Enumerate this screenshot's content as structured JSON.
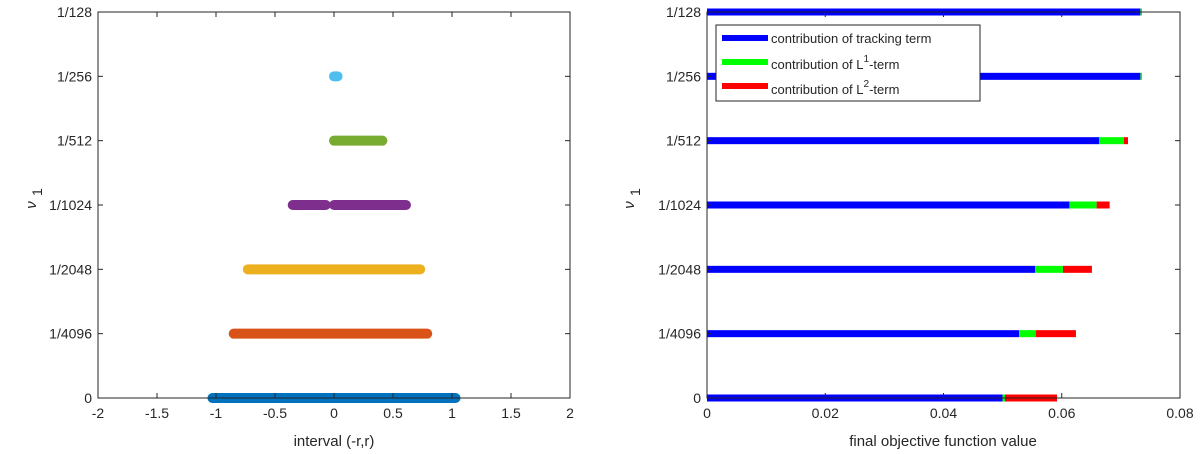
{
  "chart_data": [
    {
      "type": "scatter",
      "xlabel": "interval (-r,r)",
      "ylabel": "ν",
      "ylabel_sub": "1",
      "xlim": [
        -2,
        2
      ],
      "xticks": [
        -2,
        -1.5,
        -1,
        -0.5,
        0,
        0.5,
        1,
        1.5,
        2
      ],
      "xtick_labels": [
        "-2",
        "-1.5",
        "-1",
        "-0.5",
        "0",
        "0.5",
        "1",
        "1.5",
        "2"
      ],
      "categories": [
        "0",
        "1/4096",
        "1/2048",
        "1/1024",
        "1/512",
        "1/256",
        "1/128"
      ],
      "series": [
        {
          "category": "0",
          "color": "#0072BD",
          "segments": [
            [
              -1.03,
              1.03
            ]
          ]
        },
        {
          "category": "1/4096",
          "color": "#D95319",
          "segments": [
            [
              -0.85,
              0.79
            ]
          ]
        },
        {
          "category": "1/2048",
          "color": "#EDB120",
          "segments": [
            [
              -0.73,
              0.73
            ]
          ]
        },
        {
          "category": "1/1024",
          "color": "#7E2F8E",
          "segments": [
            [
              -0.35,
              -0.07
            ],
            [
              0.0,
              0.61
            ]
          ]
        },
        {
          "category": "1/512",
          "color": "#77AC30",
          "segments": [
            [
              0.0,
              0.41
            ]
          ]
        },
        {
          "category": "1/256",
          "color": "#4DBEEE",
          "segments": [
            [
              0.0,
              0.03
            ]
          ]
        },
        {
          "category": "1/128",
          "color": "#A2142F",
          "segments": []
        }
      ]
    },
    {
      "type": "bar",
      "orientation": "horizontal",
      "stacked": true,
      "xlabel": "final objective function value",
      "ylabel": "ν",
      "ylabel_sub": "1",
      "xlim": [
        0,
        0.08
      ],
      "xticks": [
        0,
        0.02,
        0.04,
        0.06,
        0.08
      ],
      "xtick_labels": [
        "0",
        "0.02",
        "0.04",
        "0.06",
        "0.08"
      ],
      "categories": [
        "0",
        "1/4096",
        "1/2048",
        "1/1024",
        "1/512",
        "1/256",
        "1/128"
      ],
      "legend_position": "top-left",
      "series": [
        {
          "name": "contribution of tracking term",
          "name_base": "contribution of tracking term",
          "name_sup": "",
          "name_after": "",
          "color": "#0000FF",
          "values": [
            0.05,
            0.0528,
            0.0555,
            0.0613,
            0.0663,
            0.0733,
            0.0733
          ]
        },
        {
          "name": "contribution of L1-term",
          "name_base": "contribution of L",
          "name_sup": "1",
          "name_after": "-term",
          "color": "#00FF00",
          "values": [
            0.0004,
            0.0028,
            0.0047,
            0.0046,
            0.0042,
            0.0001,
            0.0001
          ]
        },
        {
          "name": "contribution of L2-term",
          "name_base": "contribution of L",
          "name_sup": "2",
          "name_after": "-term",
          "color": "#FF0000",
          "values": [
            0.0088,
            0.0068,
            0.0049,
            0.0022,
            0.0007,
            0.0001,
            0.0001
          ]
        }
      ]
    }
  ]
}
